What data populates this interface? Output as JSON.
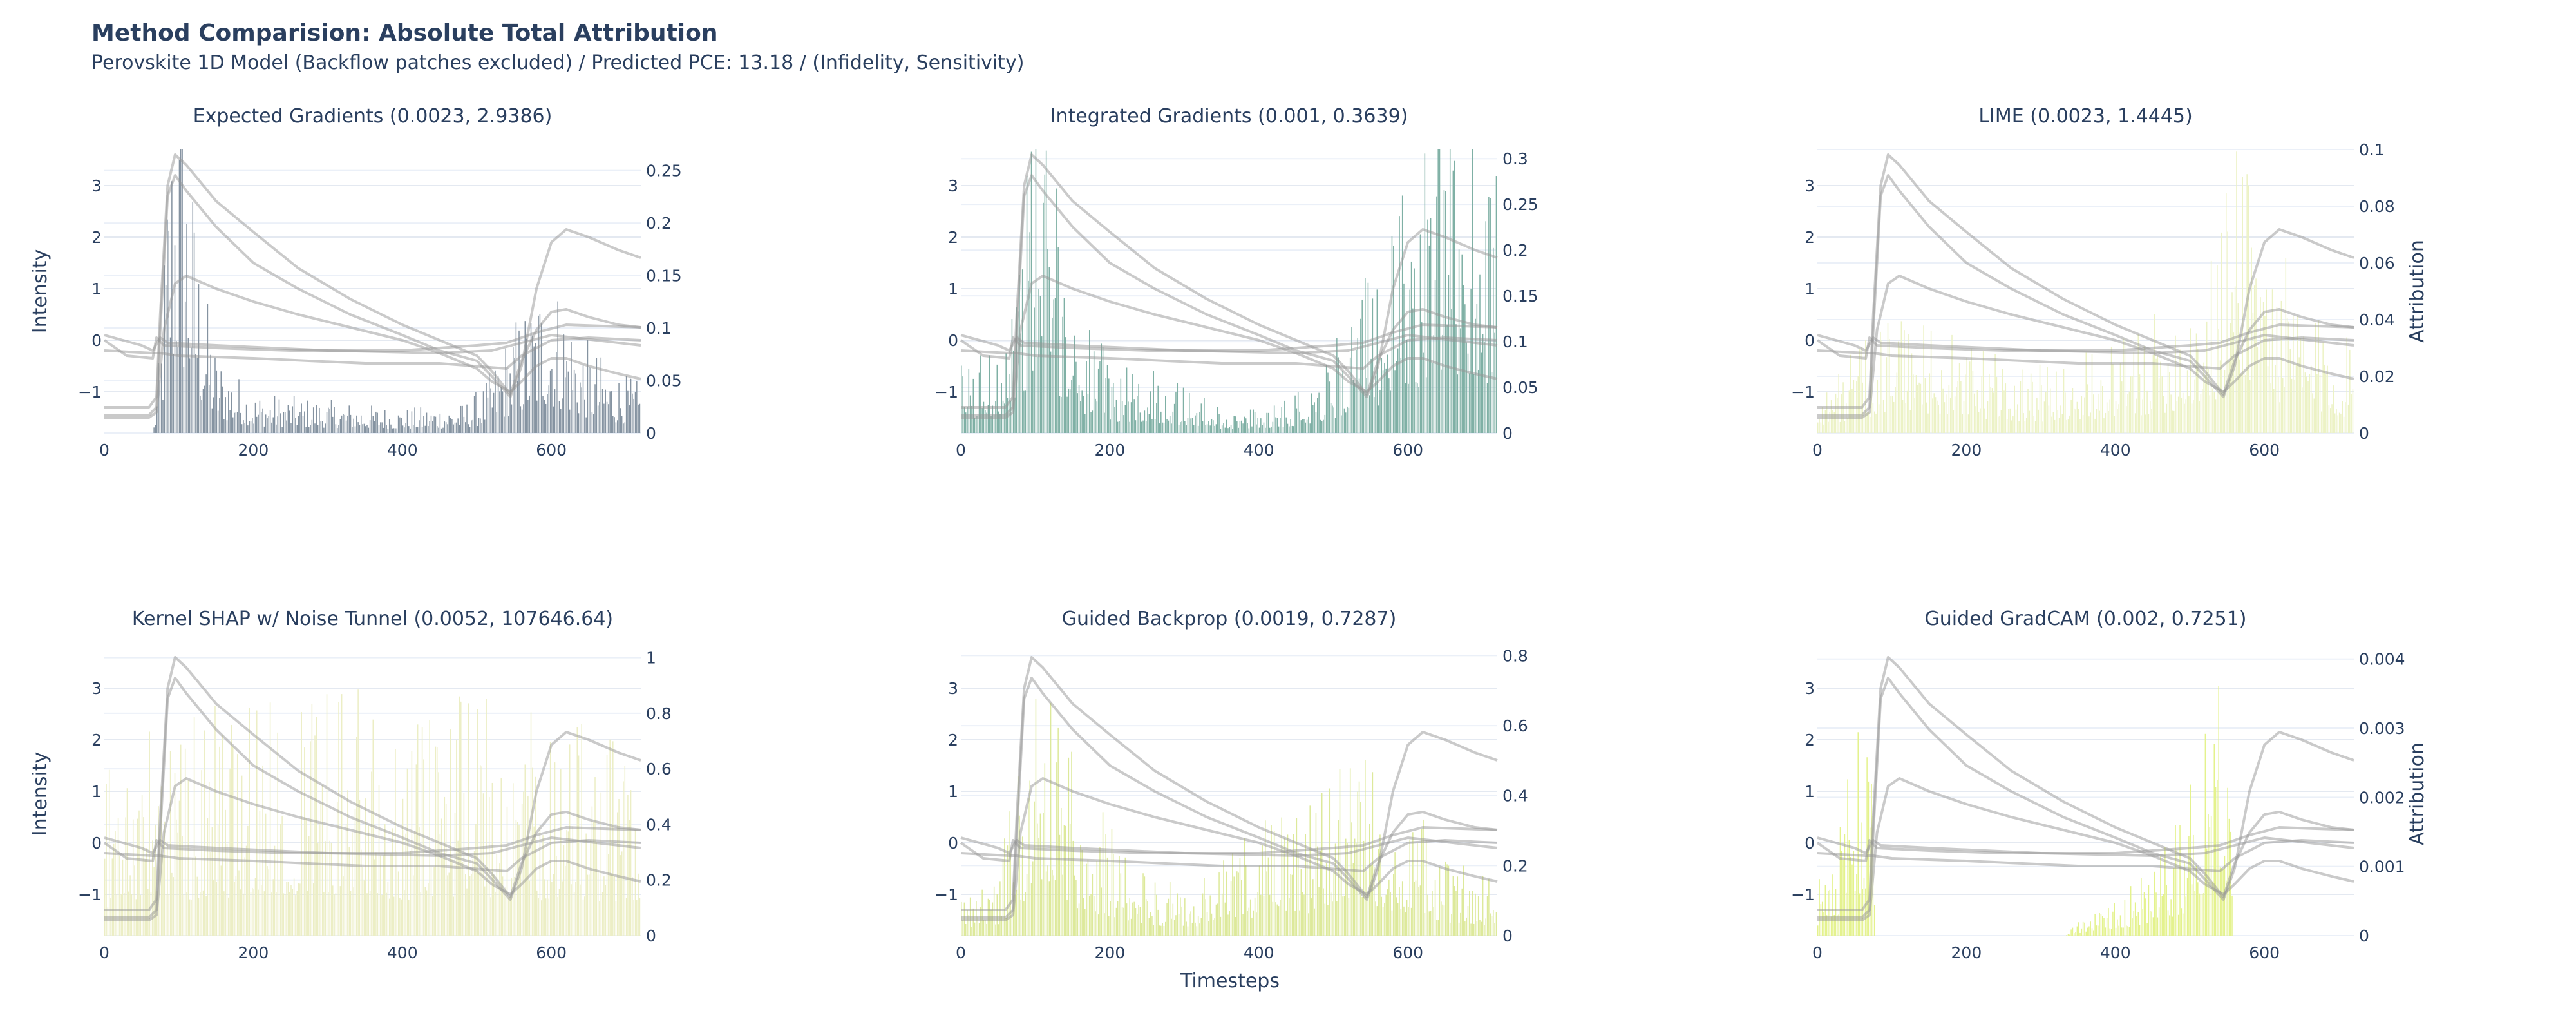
{
  "title": "Method Comparision: Absolute Total Attribution",
  "subtitle": "Perovskite 1D Model (Backflow patches excluded) / Predicted PCE: 13.18 / (Infidelity, Sensitivity)",
  "x_axis_label": "Timesteps",
  "y_left_label": "Intensity",
  "y_right_label": "Attribution",
  "chart_data": [
    {
      "type": "bar",
      "title": "Expected Gradients (0.0023, 2.9386)",
      "bar_color": "#8593a1",
      "x_range": [
        0,
        720
      ],
      "x_ticks": [
        0,
        200,
        400,
        600
      ],
      "y_left_range": [
        -1.8,
        3.7
      ],
      "y_left_ticks": [
        -1,
        0,
        1,
        2,
        3
      ],
      "y_right_range": [
        0,
        0.27
      ],
      "y_right_ticks": [
        0,
        0.05,
        0.1,
        0.15,
        0.2,
        0.25
      ],
      "show_y_left_label": true,
      "show_y_right_label": false,
      "attribution_profile": [
        [
          0,
          0
        ],
        [
          65,
          0
        ],
        [
          75,
          0.06
        ],
        [
          85,
          0.18
        ],
        [
          95,
          0.24
        ],
        [
          105,
          0.22
        ],
        [
          115,
          0.17
        ],
        [
          130,
          0.1
        ],
        [
          150,
          0.05
        ],
        [
          200,
          0.025
        ],
        [
          300,
          0.02
        ],
        [
          400,
          0.015
        ],
        [
          480,
          0.018
        ],
        [
          510,
          0.03
        ],
        [
          530,
          0.05
        ],
        [
          550,
          0.07
        ],
        [
          570,
          0.08
        ],
        [
          590,
          0.1
        ],
        [
          610,
          0.09
        ],
        [
          640,
          0.06
        ],
        [
          680,
          0.04
        ],
        [
          720,
          0.03
        ]
      ]
    },
    {
      "type": "bar",
      "title": "Integrated Gradients (0.001, 0.3639)",
      "bar_color": "#7fb0a5",
      "x_range": [
        0,
        720
      ],
      "x_ticks": [
        0,
        200,
        400,
        600
      ],
      "y_left_range": [
        -1.8,
        3.7
      ],
      "y_left_ticks": [
        -1,
        0,
        1,
        2,
        3
      ],
      "y_right_range": [
        0,
        0.31
      ],
      "y_right_ticks": [
        0,
        0.05,
        0.1,
        0.15,
        0.2,
        0.25,
        0.3
      ],
      "show_y_left_label": false,
      "show_y_right_label": false,
      "attribution_profile": [
        [
          0,
          0.05
        ],
        [
          40,
          0.06
        ],
        [
          70,
          0.12
        ],
        [
          90,
          0.2
        ],
        [
          105,
          0.26
        ],
        [
          120,
          0.2
        ],
        [
          150,
          0.1
        ],
        [
          200,
          0.05
        ],
        [
          280,
          0.04
        ],
        [
          340,
          0.02
        ],
        [
          380,
          0.015
        ],
        [
          450,
          0.03
        ],
        [
          500,
          0.06
        ],
        [
          530,
          0.1
        ],
        [
          560,
          0.12
        ],
        [
          600,
          0.18
        ],
        [
          640,
          0.22
        ],
        [
          680,
          0.24
        ],
        [
          720,
          0.2
        ]
      ]
    },
    {
      "type": "bar",
      "title": "LIME (0.0023, 1.4445)",
      "bar_color": "#ecf2c5",
      "x_range": [
        0,
        720
      ],
      "x_ticks": [
        0,
        200,
        400,
        600
      ],
      "y_left_range": [
        -1.8,
        3.7
      ],
      "y_left_ticks": [
        -1,
        0,
        1,
        2,
        3
      ],
      "y_right_range": [
        0,
        0.1
      ],
      "y_right_ticks": [
        0,
        0.02,
        0.04,
        0.06,
        0.08,
        0.1
      ],
      "show_y_left_label": false,
      "show_y_right_label": true,
      "attribution_profile": [
        [
          0,
          0.01
        ],
        [
          60,
          0.02
        ],
        [
          100,
          0.03
        ],
        [
          200,
          0.02
        ],
        [
          300,
          0.015
        ],
        [
          400,
          0.02
        ],
        [
          480,
          0.03
        ],
        [
          530,
          0.04
        ],
        [
          570,
          0.08
        ],
        [
          600,
          0.05
        ],
        [
          650,
          0.03
        ],
        [
          720,
          0.02
        ]
      ]
    },
    {
      "type": "bar",
      "title": "Kernel SHAP w/ Noise Tunnel (0.0052, 107646.64)",
      "bar_color": "#eceec5",
      "x_range": [
        0,
        720
      ],
      "x_ticks": [
        0,
        200,
        400,
        600
      ],
      "y_left_range": [
        -1.8,
        3.7
      ],
      "y_left_ticks": [
        -1,
        0,
        1,
        2,
        3
      ],
      "y_right_range": [
        0,
        1.02
      ],
      "y_right_ticks": [
        0,
        0.2,
        0.4,
        0.6,
        0.8,
        1
      ],
      "show_y_left_label": true,
      "show_y_right_label": false,
      "attribution_profile": [
        [
          0,
          0.4
        ],
        [
          100,
          0.5
        ],
        [
          200,
          0.55
        ],
        [
          300,
          0.6
        ],
        [
          400,
          0.5
        ],
        [
          500,
          0.55
        ],
        [
          600,
          0.5
        ],
        [
          720,
          0.45
        ]
      ]
    },
    {
      "type": "bar",
      "title": "Guided Backprop (0.0019, 0.7287)",
      "bar_color": "#dde99b",
      "x_range": [
        0,
        720
      ],
      "x_ticks": [
        0,
        200,
        400,
        600
      ],
      "y_left_range": [
        -1.8,
        3.7
      ],
      "y_left_ticks": [
        -1,
        0,
        1,
        2,
        3
      ],
      "y_right_range": [
        0,
        0.81
      ],
      "y_right_ticks": [
        0,
        0.2,
        0.4,
        0.6,
        0.8
      ],
      "show_y_left_label": false,
      "show_y_right_label": false,
      "attribution_profile": [
        [
          0,
          0.08
        ],
        [
          50,
          0.12
        ],
        [
          80,
          0.35
        ],
        [
          100,
          0.55
        ],
        [
          120,
          0.45
        ],
        [
          160,
          0.3
        ],
        [
          220,
          0.15
        ],
        [
          300,
          0.08
        ],
        [
          340,
          0.12
        ],
        [
          380,
          0.2
        ],
        [
          450,
          0.22
        ],
        [
          500,
          0.3
        ],
        [
          530,
          0.35
        ],
        [
          560,
          0.3
        ],
        [
          600,
          0.25
        ],
        [
          650,
          0.15
        ],
        [
          720,
          0.1
        ]
      ]
    },
    {
      "type": "bar",
      "title": "Guided GradCAM (0.002, 0.7251)",
      "bar_color": "#e4f28d",
      "x_range": [
        0,
        720
      ],
      "x_ticks": [
        0,
        200,
        400,
        600
      ],
      "y_left_range": [
        -1.8,
        3.7
      ],
      "y_left_ticks": [
        -1,
        0,
        1,
        2,
        3
      ],
      "y_right_range": [
        0,
        0.0041
      ],
      "y_right_ticks": [
        0,
        0.001,
        0.002,
        0.003,
        0.004
      ],
      "show_y_left_label": false,
      "show_y_right_label": true,
      "attribution_profile": [
        [
          0,
          0.0005
        ],
        [
          30,
          0.0012
        ],
        [
          60,
          0.0022
        ],
        [
          75,
          0.0025
        ],
        [
          78,
          0
        ],
        [
          330,
          0
        ],
        [
          360,
          0.0002
        ],
        [
          420,
          0.0005
        ],
        [
          460,
          0.0008
        ],
        [
          490,
          0.0012
        ],
        [
          510,
          0.0018
        ],
        [
          530,
          0.003
        ],
        [
          545,
          0.0035
        ],
        [
          555,
          0.002
        ],
        [
          558,
          0
        ],
        [
          720,
          0
        ]
      ]
    }
  ],
  "intensity_series": [
    [
      [
        0,
        -1.45
      ],
      [
        60,
        -1.45
      ],
      [
        70,
        -1.3
      ],
      [
        75,
        0.2
      ],
      [
        85,
        2.8
      ],
      [
        95,
        3.2
      ],
      [
        110,
        2.9
      ],
      [
        150,
        2.2
      ],
      [
        200,
        1.5
      ],
      [
        260,
        1.0
      ],
      [
        330,
        0.5
      ],
      [
        400,
        0.1
      ],
      [
        450,
        -0.2
      ],
      [
        500,
        -0.4
      ],
      [
        520,
        -0.7
      ],
      [
        545,
        -1.1
      ],
      [
        560,
        -0.5
      ],
      [
        580,
        1.0
      ],
      [
        600,
        1.9
      ],
      [
        620,
        2.15
      ],
      [
        650,
        2.0
      ],
      [
        690,
        1.75
      ],
      [
        720,
        1.6
      ]
    ],
    [
      [
        0,
        -1.3
      ],
      [
        60,
        -1.3
      ],
      [
        70,
        -1.1
      ],
      [
        75,
        0.5
      ],
      [
        85,
        3.0
      ],
      [
        95,
        3.6
      ],
      [
        110,
        3.4
      ],
      [
        150,
        2.7
      ],
      [
        200,
        2.1
      ],
      [
        260,
        1.4
      ],
      [
        330,
        0.8
      ],
      [
        400,
        0.3
      ],
      [
        450,
        0.0
      ],
      [
        500,
        -0.3
      ],
      [
        520,
        -0.6
      ],
      [
        545,
        -1.05
      ],
      [
        560,
        -0.4
      ],
      [
        580,
        0.2
      ],
      [
        600,
        0.55
      ],
      [
        620,
        0.6
      ],
      [
        650,
        0.45
      ],
      [
        690,
        0.3
      ],
      [
        720,
        0.25
      ]
    ],
    [
      [
        0,
        -1.5
      ],
      [
        60,
        -1.5
      ],
      [
        70,
        -1.4
      ],
      [
        80,
        0.2
      ],
      [
        95,
        1.1
      ],
      [
        110,
        1.25
      ],
      [
        150,
        1.0
      ],
      [
        200,
        0.75
      ],
      [
        260,
        0.5
      ],
      [
        330,
        0.25
      ],
      [
        400,
        0.0
      ],
      [
        450,
        -0.25
      ],
      [
        500,
        -0.55
      ],
      [
        520,
        -0.8
      ],
      [
        545,
        -1.0
      ],
      [
        560,
        -0.8
      ],
      [
        580,
        -0.5
      ],
      [
        600,
        -0.35
      ],
      [
        620,
        -0.35
      ],
      [
        650,
        -0.5
      ],
      [
        690,
        -0.65
      ],
      [
        720,
        -0.75
      ]
    ],
    [
      [
        0,
        0.0
      ],
      [
        30,
        -0.3
      ],
      [
        65,
        -0.35
      ],
      [
        70,
        0.05
      ],
      [
        80,
        -0.1
      ],
      [
        150,
        -0.15
      ],
      [
        250,
        -0.2
      ],
      [
        400,
        -0.2
      ],
      [
        500,
        -0.1
      ],
      [
        540,
        -0.05
      ],
      [
        560,
        0.05
      ],
      [
        580,
        0.15
      ],
      [
        620,
        0.3
      ],
      [
        720,
        0.25
      ]
    ],
    [
      [
        0,
        -0.2
      ],
      [
        65,
        -0.25
      ],
      [
        75,
        -0.25
      ],
      [
        100,
        -0.3
      ],
      [
        200,
        -0.35
      ],
      [
        350,
        -0.45
      ],
      [
        450,
        -0.45
      ],
      [
        540,
        -0.55
      ],
      [
        560,
        -0.3
      ],
      [
        600,
        0.0
      ],
      [
        650,
        0.05
      ],
      [
        720,
        0.0
      ]
    ],
    [
      [
        0,
        0.1
      ],
      [
        50,
        -0.1
      ],
      [
        65,
        -0.2
      ],
      [
        75,
        0.05
      ],
      [
        85,
        -0.05
      ],
      [
        150,
        -0.1
      ],
      [
        300,
        -0.2
      ],
      [
        450,
        -0.25
      ],
      [
        520,
        -0.2
      ],
      [
        560,
        -0.05
      ],
      [
        600,
        0.1
      ],
      [
        720,
        -0.1
      ]
    ]
  ]
}
